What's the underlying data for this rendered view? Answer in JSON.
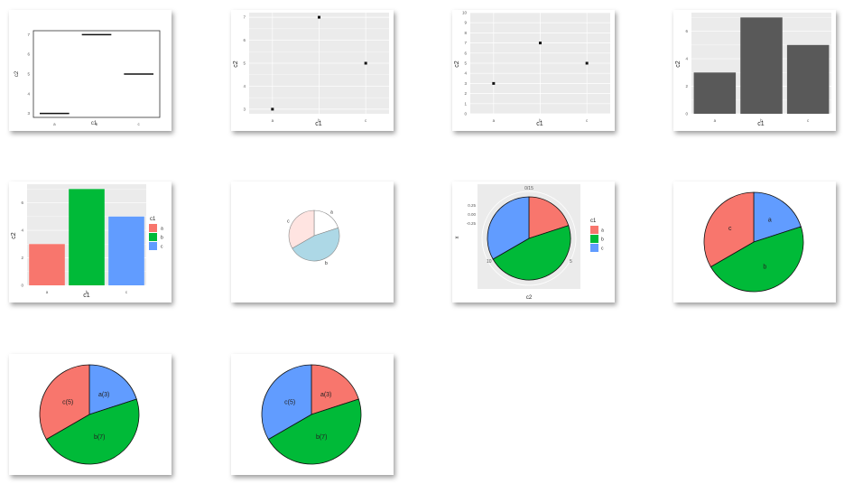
{
  "colors": {
    "a": "#f8766d",
    "b": "#00ba38",
    "c": "#619cff",
    "grey": "#595959",
    "panel": "#ebebeb"
  },
  "chart_data": [
    {
      "id": "c1",
      "type": "line",
      "categories": [
        "a",
        "b",
        "c"
      ],
      "values": [
        3,
        7,
        5
      ],
      "xlabel": "c1",
      "ylabel": "c2",
      "yticks": [
        "3",
        "4",
        "5",
        "6",
        "7"
      ],
      "ylim": [
        2.8,
        7.2
      ],
      "style": "boxplot-like segments"
    },
    {
      "id": "c2",
      "type": "scatter",
      "categories": [
        "a",
        "b",
        "c"
      ],
      "values": [
        3,
        7,
        5
      ],
      "xlabel": "c1",
      "ylabel": "c2",
      "yticks": [
        "3",
        "4",
        "5",
        "6",
        "7"
      ],
      "ylim": [
        2.8,
        7.2
      ]
    },
    {
      "id": "c3",
      "type": "scatter",
      "categories": [
        "a",
        "b",
        "c"
      ],
      "values": [
        3,
        7,
        5
      ],
      "xlabel": "c1",
      "ylabel": "c2",
      "yticks": [
        "0",
        "1",
        "2",
        "3",
        "4",
        "5",
        "6",
        "7",
        "8",
        "9",
        "10"
      ],
      "ylim": [
        0,
        10
      ]
    },
    {
      "id": "c4",
      "type": "bar",
      "categories": [
        "a",
        "b",
        "c"
      ],
      "values": [
        3,
        7,
        5
      ],
      "xlabel": "c1",
      "ylabel": "c2",
      "yticks": [
        "0",
        "2",
        "4",
        "6"
      ],
      "ylim": [
        0,
        7.35
      ]
    },
    {
      "id": "c5",
      "type": "bar",
      "categories": [
        "a",
        "b",
        "c"
      ],
      "values": [
        3,
        7,
        5
      ],
      "xlabel": "c1",
      "ylabel": "c2",
      "yticks": [
        "0",
        "2",
        "4",
        "6"
      ],
      "ylim": [
        0,
        7.35
      ],
      "legend": {
        "title": "c1",
        "entries": [
          "a",
          "b",
          "c"
        ],
        "position": "right"
      }
    },
    {
      "id": "c6",
      "type": "pie",
      "categories": [
        "a",
        "b",
        "c"
      ],
      "values": [
        3,
        7,
        5
      ],
      "labels": [
        "a",
        "b",
        "c"
      ],
      "palette": "pastel"
    },
    {
      "id": "c7",
      "type": "pie",
      "categories": [
        "a",
        "b",
        "c"
      ],
      "values": [
        3,
        7,
        5
      ],
      "xlabel": "c2",
      "ylabel": "x",
      "yticks": [
        "0.25",
        "0.00",
        "-0.25"
      ],
      "angle_ticks": [
        "0/15",
        "5",
        "10"
      ],
      "legend": {
        "title": "c1",
        "entries": [
          "a",
          "b",
          "c"
        ],
        "position": "right"
      }
    },
    {
      "id": "c8",
      "type": "pie",
      "categories": [
        "a",
        "b",
        "c"
      ],
      "values": [
        3,
        7,
        5
      ],
      "labels": [
        "a",
        "b",
        "c"
      ],
      "order": [
        "a",
        "b",
        "c"
      ]
    },
    {
      "id": "c9",
      "type": "pie",
      "categories": [
        "a",
        "b",
        "c"
      ],
      "values": [
        3,
        7,
        5
      ],
      "labels": [
        "a(3)",
        "b(7)",
        "c(5)"
      ]
    },
    {
      "id": "c10",
      "type": "pie",
      "categories": [
        "a",
        "b",
        "c"
      ],
      "values": [
        3,
        7,
        5
      ],
      "labels": [
        "a(3)",
        "b(7)",
        "c(5)"
      ]
    }
  ]
}
